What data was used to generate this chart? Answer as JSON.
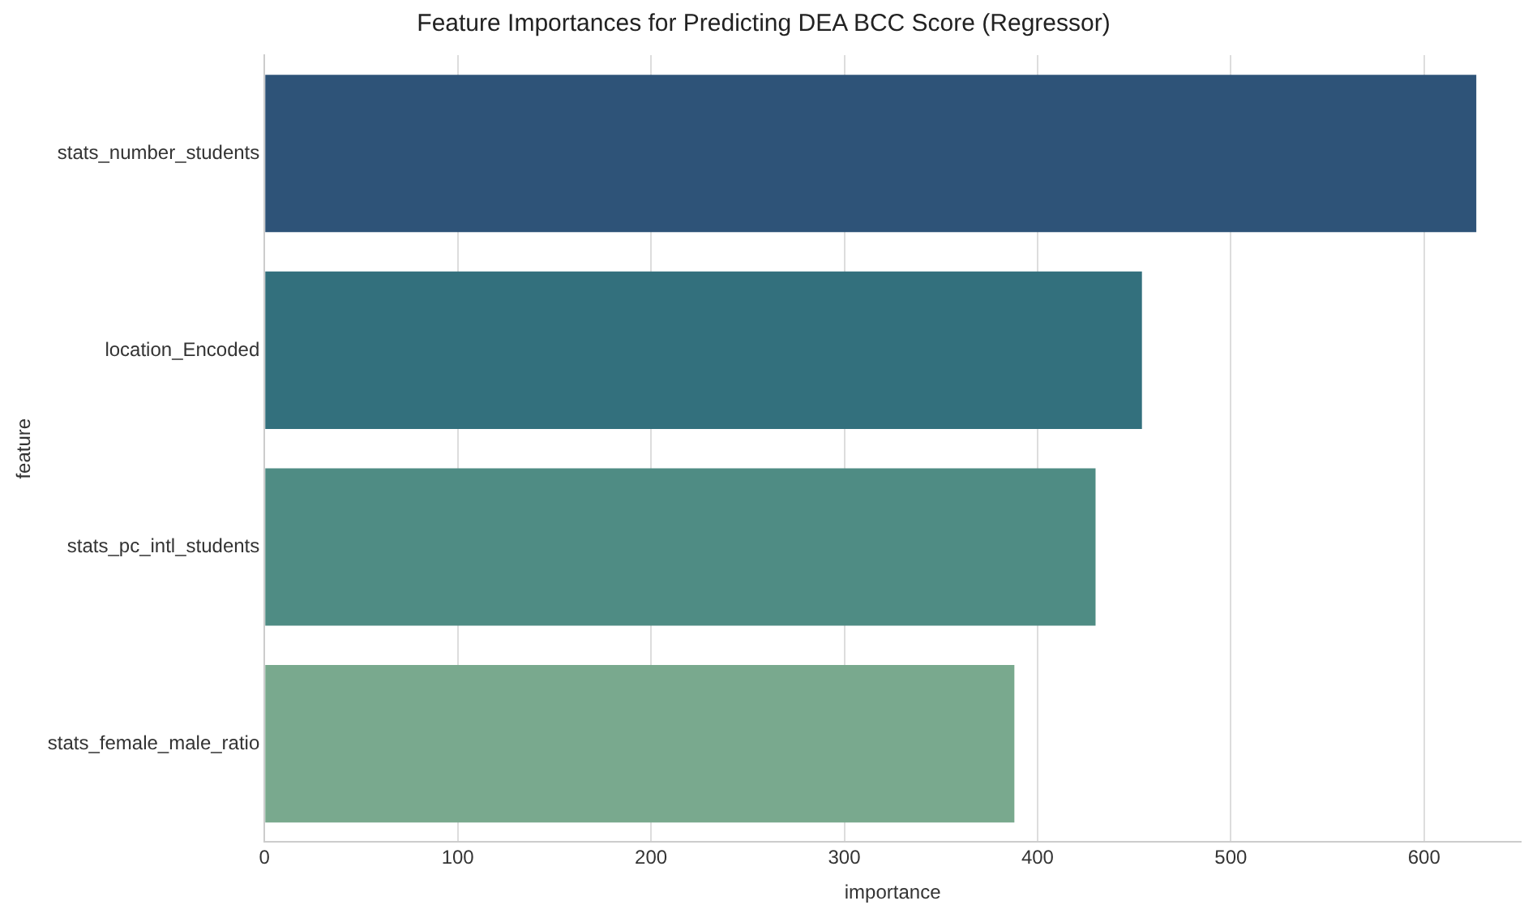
{
  "chart_data": {
    "type": "bar",
    "orientation": "horizontal",
    "title": "Feature Importances for Predicting DEA BCC Score (Regressor)",
    "xlabel": "importance",
    "ylabel": "feature",
    "categories": [
      "stats_number_students",
      "location_Encoded",
      "stats_pc_intl_students",
      "stats_female_male_ratio"
    ],
    "values": [
      627,
      454,
      430,
      388
    ],
    "colors": [
      "#2e5378",
      "#33707d",
      "#4f8c84",
      "#79a98e"
    ],
    "xlim": [
      0,
      650
    ],
    "xticks": [
      0,
      100,
      200,
      300,
      400,
      500,
      600
    ],
    "grid": "x",
    "legend": false
  }
}
